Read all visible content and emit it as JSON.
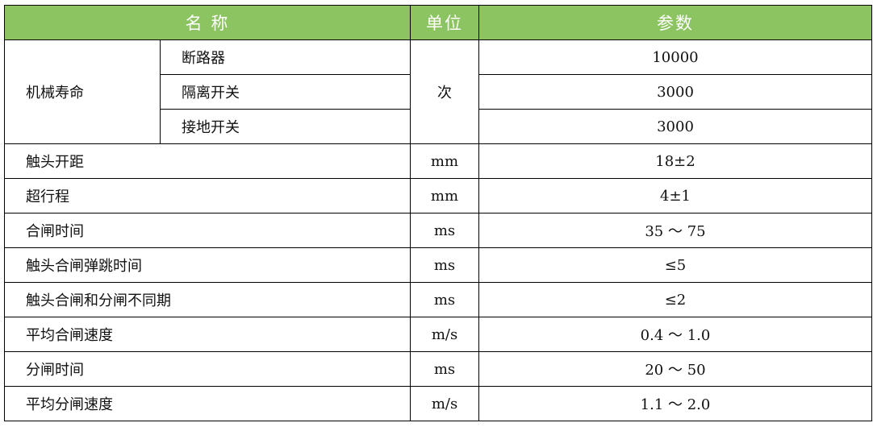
{
  "header": {
    "name": "名 称",
    "unit": "单位",
    "param": "参数"
  },
  "group": {
    "label": "机械寿命",
    "unit": "次",
    "items": [
      {
        "name": "断路器",
        "value": "10000"
      },
      {
        "name": "隔离开关",
        "value": "3000"
      },
      {
        "name": "接地开关",
        "value": "3000"
      }
    ]
  },
  "rows": [
    {
      "name": "触头开距",
      "unit": "mm",
      "value": "18±2"
    },
    {
      "name": "超行程",
      "unit": "mm",
      "value": "4±1"
    },
    {
      "name": "合闸时间",
      "unit": "ms",
      "value": "35 ～ 75"
    },
    {
      "name": "触头合闸弹跳时间",
      "unit": "ms",
      "value": "≤5"
    },
    {
      "name": "触头合闸和分闸不同期",
      "unit": "ms",
      "value": "≤2"
    },
    {
      "name": "平均合闸速度",
      "unit": "m/s",
      "value": "0.4 ～ 1.0"
    },
    {
      "name": "分闸时间",
      "unit": "ms",
      "value": "20 ～ 50"
    },
    {
      "name": "平均分闸速度",
      "unit": "m/s",
      "value": "1.1 ～ 2.0"
    }
  ],
  "colors": {
    "header_bg": "#8dc462",
    "header_text": "#ffffff"
  }
}
